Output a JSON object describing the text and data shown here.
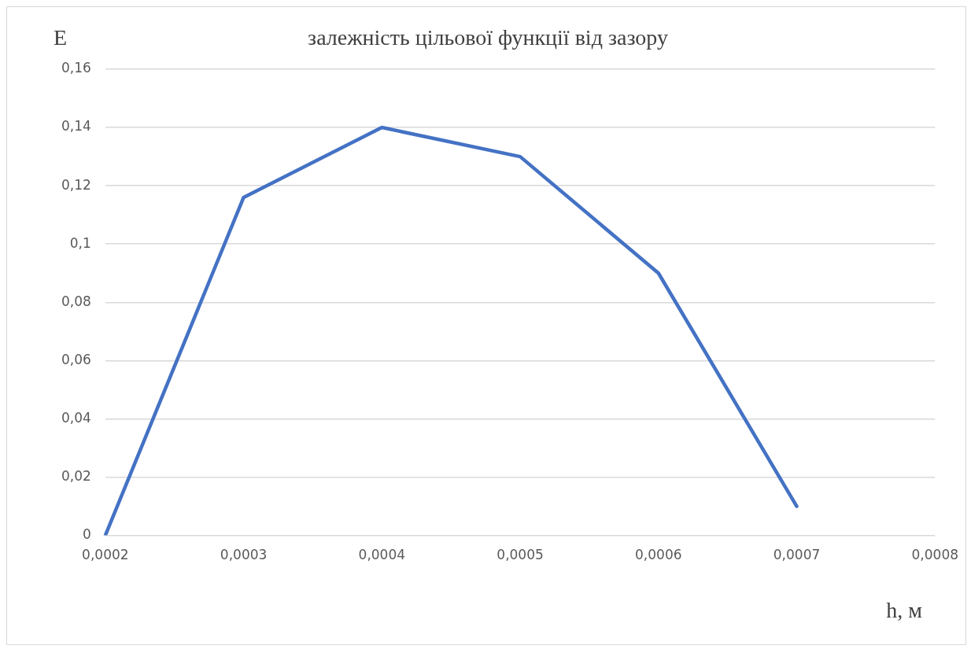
{
  "chart_data": {
    "type": "line",
    "title": "залежність цільової функції від зазору",
    "xlabel": "h, м",
    "ylabel": "E",
    "categories": [
      "0,0002",
      "0,0003",
      "0,0004",
      "0,0005",
      "0,0006",
      "0,0007",
      "0,0008"
    ],
    "series": [
      {
        "color": "#4472c4",
        "values": [
          0,
          0.116,
          0.14,
          0.13,
          0.09,
          0.01,
          null
        ]
      }
    ],
    "ylim": [
      0,
      0.16
    ],
    "yticks": [
      0,
      {
        "value": 0.02,
        "label": "0,02"
      },
      {
        "value": 0.04,
        "label": "0,04"
      },
      {
        "value": 0.06,
        "label": "0,06"
      },
      {
        "value": 0.08,
        "label": "0,08"
      },
      {
        "value": 0.1,
        "label": "0,1"
      },
      {
        "value": 0.12,
        "label": "0,12"
      },
      {
        "value": 0.14,
        "label": "0,14"
      },
      {
        "value": 0.16,
        "label": "0,16"
      }
    ],
    "grid": "y",
    "legend": false,
    "marker": "none",
    "line_style": "solid"
  }
}
